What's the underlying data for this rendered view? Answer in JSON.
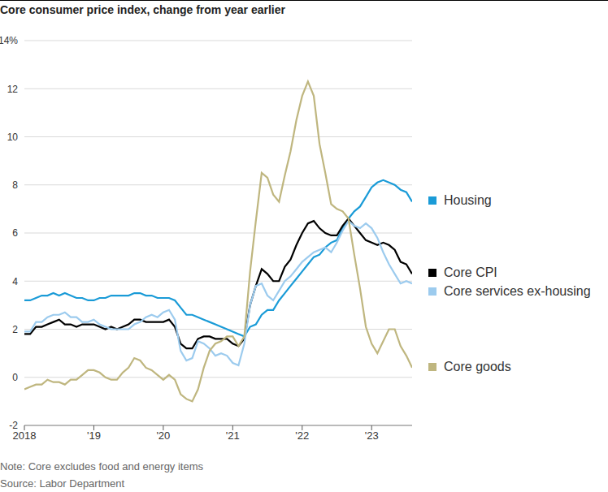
{
  "chart_data": {
    "type": "line",
    "title": "Core consumer price index, change from year earlier",
    "note": "Note: Core excludes food and energy items",
    "source": "Source: Labor Department",
    "x": [
      2018,
      2018.083,
      2018.167,
      2018.25,
      2018.333,
      2018.417,
      2018.5,
      2018.583,
      2018.667,
      2018.75,
      2018.833,
      2018.917,
      2019,
      2019.083,
      2019.167,
      2019.25,
      2019.333,
      2019.417,
      2019.5,
      2019.583,
      2019.667,
      2019.75,
      2019.833,
      2019.917,
      2020,
      2020.083,
      2020.167,
      2020.25,
      2020.333,
      2020.417,
      2020.5,
      2020.583,
      2020.667,
      2020.75,
      2020.833,
      2020.917,
      2021,
      2021.083,
      2021.167,
      2021.25,
      2021.333,
      2021.417,
      2021.5,
      2021.583,
      2021.667,
      2021.75,
      2021.833,
      2021.917,
      2022,
      2022.083,
      2022.167,
      2022.25,
      2022.333,
      2022.417,
      2022.5,
      2022.583,
      2022.667,
      2022.75,
      2022.833,
      2022.917,
      2023,
      2023.083,
      2023.167,
      2023.25,
      2023.333,
      2023.417,
      2023.5,
      2023.583
    ],
    "series": [
      {
        "name": "Housing",
        "color": "#1a9bd7",
        "values": [
          3.2,
          3.2,
          3.3,
          3.4,
          3.4,
          3.5,
          3.4,
          3.5,
          3.4,
          3.3,
          3.3,
          3.2,
          3.2,
          3.3,
          3.3,
          3.4,
          3.4,
          3.4,
          3.4,
          3.5,
          3.5,
          3.4,
          3.4,
          3.3,
          3.3,
          3.3,
          3.2,
          2.9,
          2.6,
          2.6,
          2.5,
          2.4,
          2.3,
          2.2,
          2.1,
          2.0,
          1.9,
          1.8,
          1.7,
          2.1,
          2.2,
          2.6,
          2.8,
          2.8,
          3.2,
          3.5,
          3.8,
          4.1,
          4.4,
          4.7,
          5.0,
          5.1,
          5.4,
          5.6,
          5.7,
          6.2,
          6.6,
          6.9,
          7.1,
          7.5,
          7.9,
          8.1,
          8.2,
          8.1,
          8.0,
          7.8,
          7.7,
          7.3
        ]
      },
      {
        "name": "Core CPI",
        "color": "#000000",
        "values": [
          1.8,
          1.8,
          2.1,
          2.1,
          2.2,
          2.3,
          2.4,
          2.2,
          2.2,
          2.1,
          2.2,
          2.2,
          2.2,
          2.1,
          2.0,
          2.1,
          2.0,
          2.1,
          2.2,
          2.4,
          2.4,
          2.3,
          2.3,
          2.3,
          2.3,
          2.4,
          2.1,
          1.4,
          1.2,
          1.2,
          1.6,
          1.7,
          1.7,
          1.6,
          1.6,
          1.6,
          1.4,
          1.3,
          1.6,
          3.0,
          3.8,
          4.5,
          4.3,
          4.0,
          4.0,
          4.6,
          4.9,
          5.5,
          6.0,
          6.4,
          6.5,
          6.2,
          6.0,
          5.9,
          5.9,
          6.3,
          6.6,
          6.3,
          6.0,
          5.7,
          5.6,
          5.5,
          5.6,
          5.5,
          5.3,
          4.8,
          4.7,
          4.3
        ]
      },
      {
        "name": "Core services ex-housing",
        "color": "#9ccbee",
        "values": [
          1.9,
          1.9,
          2.3,
          2.3,
          2.5,
          2.6,
          2.6,
          2.7,
          2.5,
          2.5,
          2.3,
          2.3,
          2.4,
          2.2,
          2.1,
          2.0,
          2.0,
          2.0,
          2.0,
          2.2,
          2.3,
          2.5,
          2.6,
          2.5,
          2.7,
          2.8,
          2.4,
          1.1,
          0.7,
          0.8,
          1.5,
          1.4,
          1.2,
          0.9,
          1.0,
          0.9,
          0.6,
          0.5,
          1.4,
          3.0,
          3.8,
          3.9,
          3.4,
          3.2,
          3.6,
          4.0,
          4.2,
          4.5,
          4.8,
          5.0,
          5.2,
          5.3,
          5.4,
          5.2,
          5.6,
          6.1,
          6.5,
          6.3,
          6.2,
          6.4,
          6.2,
          5.8,
          5.2,
          4.7,
          4.3,
          3.9,
          4.0,
          3.9
        ]
      },
      {
        "name": "Core goods",
        "color": "#bfb67f",
        "values": [
          -0.5,
          -0.4,
          -0.3,
          -0.3,
          -0.1,
          -0.2,
          -0.2,
          -0.3,
          -0.1,
          -0.1,
          0.1,
          0.3,
          0.3,
          0.2,
          0.0,
          -0.1,
          -0.1,
          0.2,
          0.4,
          0.8,
          0.7,
          0.4,
          0.3,
          0.1,
          -0.1,
          0.1,
          -0.1,
          -0.7,
          -0.9,
          -1.0,
          -0.5,
          0.4,
          1.1,
          1.4,
          1.5,
          1.7,
          1.7,
          1.3,
          1.7,
          4.4,
          6.5,
          8.5,
          8.3,
          7.6,
          7.3,
          8.4,
          9.4,
          10.7,
          11.7,
          12.3,
          11.7,
          9.7,
          8.5,
          7.2,
          7.0,
          6.9,
          6.6,
          5.1,
          3.7,
          2.1,
          1.4,
          1.0,
          1.5,
          2.0,
          2.0,
          1.3,
          0.9,
          0.4
        ]
      }
    ],
    "xlim": [
      2018,
      2023.583
    ],
    "xticks": [
      2018,
      {
        "value": 2019,
        "label": "'19"
      },
      {
        "value": 2020,
        "label": "'20"
      },
      {
        "value": 2021,
        "label": "'21"
      },
      {
        "value": 2022,
        "label": "'22"
      },
      {
        "value": 2023,
        "label": "'23"
      }
    ],
    "ylim": [
      -2,
      14
    ],
    "yticks": [
      -2,
      0,
      2,
      4,
      6,
      8,
      10,
      12,
      {
        "value": 14,
        "label": "14%"
      }
    ],
    "grid": true,
    "legend": "right"
  }
}
